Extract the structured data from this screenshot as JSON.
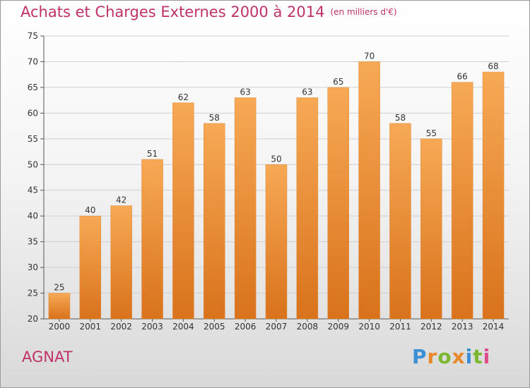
{
  "colors": {
    "title": "#c0306a",
    "bar_top": "#f7a955",
    "bar_bottom": "#d9721c",
    "gridline": "#cfcfcf"
  },
  "header": {
    "title": "Achats et Charges Externes 2000 à 2014",
    "subtitle": "(en milliers d'€)"
  },
  "footer": {
    "location": "AGNAT",
    "brand": "Proxiti"
  },
  "chart_data": {
    "type": "bar",
    "title": "Achats et Charges Externes 2000 à 2014",
    "subtitle": "(en milliers d'€)",
    "xlabel": "",
    "ylabel": "",
    "categories": [
      "2000",
      "2001",
      "2002",
      "2003",
      "2004",
      "2005",
      "2006",
      "2007",
      "2008",
      "2009",
      "2010",
      "2011",
      "2012",
      "2013",
      "2014"
    ],
    "values": [
      25,
      40,
      42,
      51,
      62,
      58,
      63,
      50,
      63,
      65,
      70,
      58,
      55,
      66,
      68
    ],
    "ylim": [
      20,
      75
    ],
    "yticks": [
      20,
      25,
      30,
      35,
      40,
      45,
      50,
      55,
      60,
      65,
      70,
      75
    ],
    "grid": true,
    "legend": "none"
  }
}
